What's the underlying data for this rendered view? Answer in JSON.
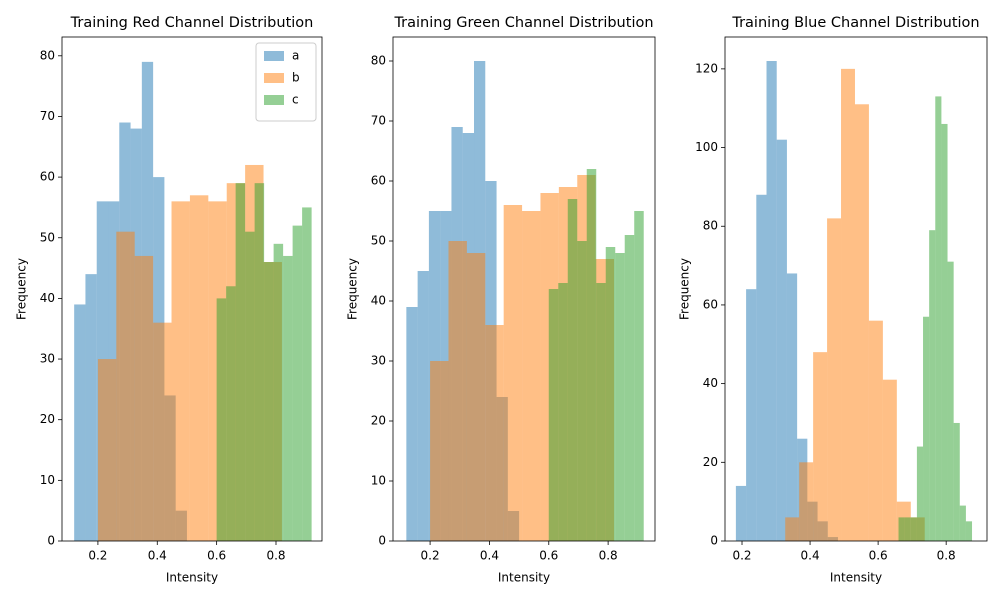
{
  "chart_data": [
    {
      "type": "histogram",
      "title": "Training Red Channel Distribution",
      "xlabel": "Intensity",
      "ylabel": "Frequency",
      "xlim": [
        0.079,
        0.955
      ],
      "ylim": [
        0,
        83.1
      ],
      "xticks": [
        0.2,
        0.4,
        0.6,
        0.8
      ],
      "yticks": [
        0,
        10,
        20,
        30,
        40,
        50,
        60,
        70,
        80
      ],
      "alpha": 0.5,
      "legend": "upper right",
      "series": [
        {
          "name": "a",
          "color": "#1f77b4",
          "bins": [
            0.12,
            0.158,
            0.196,
            0.234,
            0.272,
            0.31,
            0.348,
            0.386,
            0.424,
            0.462,
            0.5
          ],
          "values": [
            39,
            44,
            56,
            56,
            69,
            68,
            79,
            60,
            24,
            5
          ]
        },
        {
          "name": "b",
          "color": "#ff7f0e",
          "bins": [
            0.2,
            0.262,
            0.324,
            0.386,
            0.448,
            0.51,
            0.572,
            0.634,
            0.696,
            0.758,
            0.82
          ],
          "values": [
            30,
            51,
            47,
            36,
            56,
            57,
            56,
            59,
            62,
            46
          ]
        },
        {
          "name": "c",
          "color": "#2ca02c",
          "bins": [
            0.6,
            0.632,
            0.664,
            0.696,
            0.728,
            0.76,
            0.792,
            0.824,
            0.856,
            0.888,
            0.92
          ],
          "values": [
            40,
            42,
            59,
            51,
            59,
            46,
            49,
            47,
            52,
            55
          ]
        }
      ]
    },
    {
      "type": "histogram",
      "title": "Training Green Channel Distribution",
      "xlabel": "Intensity",
      "ylabel": "Frequency",
      "xlim": [
        0.075,
        0.958
      ],
      "ylim": [
        0,
        84
      ],
      "xticks": [
        0.2,
        0.4,
        0.6,
        0.8
      ],
      "yticks": [
        0,
        10,
        20,
        30,
        40,
        50,
        60,
        70,
        80
      ],
      "alpha": 0.5,
      "series": [
        {
          "color": "#1f77b4",
          "bins": [
            0.12,
            0.158,
            0.196,
            0.234,
            0.272,
            0.31,
            0.348,
            0.386,
            0.424,
            0.462,
            0.5
          ],
          "values": [
            39,
            45,
            55,
            55,
            69,
            68,
            80,
            60,
            24,
            5
          ]
        },
        {
          "color": "#ff7f0e",
          "bins": [
            0.2,
            0.262,
            0.324,
            0.386,
            0.448,
            0.51,
            0.572,
            0.634,
            0.696,
            0.758,
            0.82
          ],
          "values": [
            30,
            50,
            48,
            36,
            56,
            55,
            58,
            59,
            61,
            47
          ]
        },
        {
          "color": "#2ca02c",
          "bins": [
            0.6,
            0.632,
            0.664,
            0.696,
            0.728,
            0.76,
            0.792,
            0.824,
            0.856,
            0.888,
            0.92
          ],
          "values": [
            42,
            43,
            57,
            50,
            62,
            43,
            49,
            48,
            51,
            55
          ]
        }
      ]
    },
    {
      "type": "histogram",
      "title": "Training Blue Channel Distribution",
      "xlabel": "Intensity",
      "ylabel": "Frequency",
      "xlim": [
        0.15,
        0.92
      ],
      "ylim": [
        0,
        128.1
      ],
      "xticks": [
        0.2,
        0.4,
        0.6,
        0.8
      ],
      "yticks": [
        0,
        20,
        40,
        60,
        80,
        100,
        120
      ],
      "alpha": 0.5,
      "series": [
        {
          "color": "#1f77b4",
          "bins": [
            0.182,
            0.212,
            0.242,
            0.272,
            0.302,
            0.332,
            0.362,
            0.392,
            0.422,
            0.452,
            0.482
          ],
          "values": [
            14,
            64,
            88,
            122,
            102,
            68,
            26,
            10,
            5,
            1
          ]
        },
        {
          "color": "#ff7f0e",
          "bins": [
            0.327,
            0.368,
            0.409,
            0.45,
            0.491,
            0.532,
            0.573,
            0.614,
            0.655,
            0.696,
            0.737
          ],
          "values": [
            6,
            20,
            48,
            82,
            120,
            111,
            56,
            41,
            10,
            6
          ]
        },
        {
          "color": "#2ca02c",
          "bins": [
            0.66,
            0.678,
            0.696,
            0.714,
            0.732,
            0.75,
            0.768,
            0.786,
            0.804,
            0.822,
            0.84,
            0.858,
            0.876
          ],
          "values": [
            6,
            6,
            6,
            24,
            57,
            79,
            113,
            106,
            71,
            30,
            9,
            5
          ]
        }
      ]
    }
  ]
}
